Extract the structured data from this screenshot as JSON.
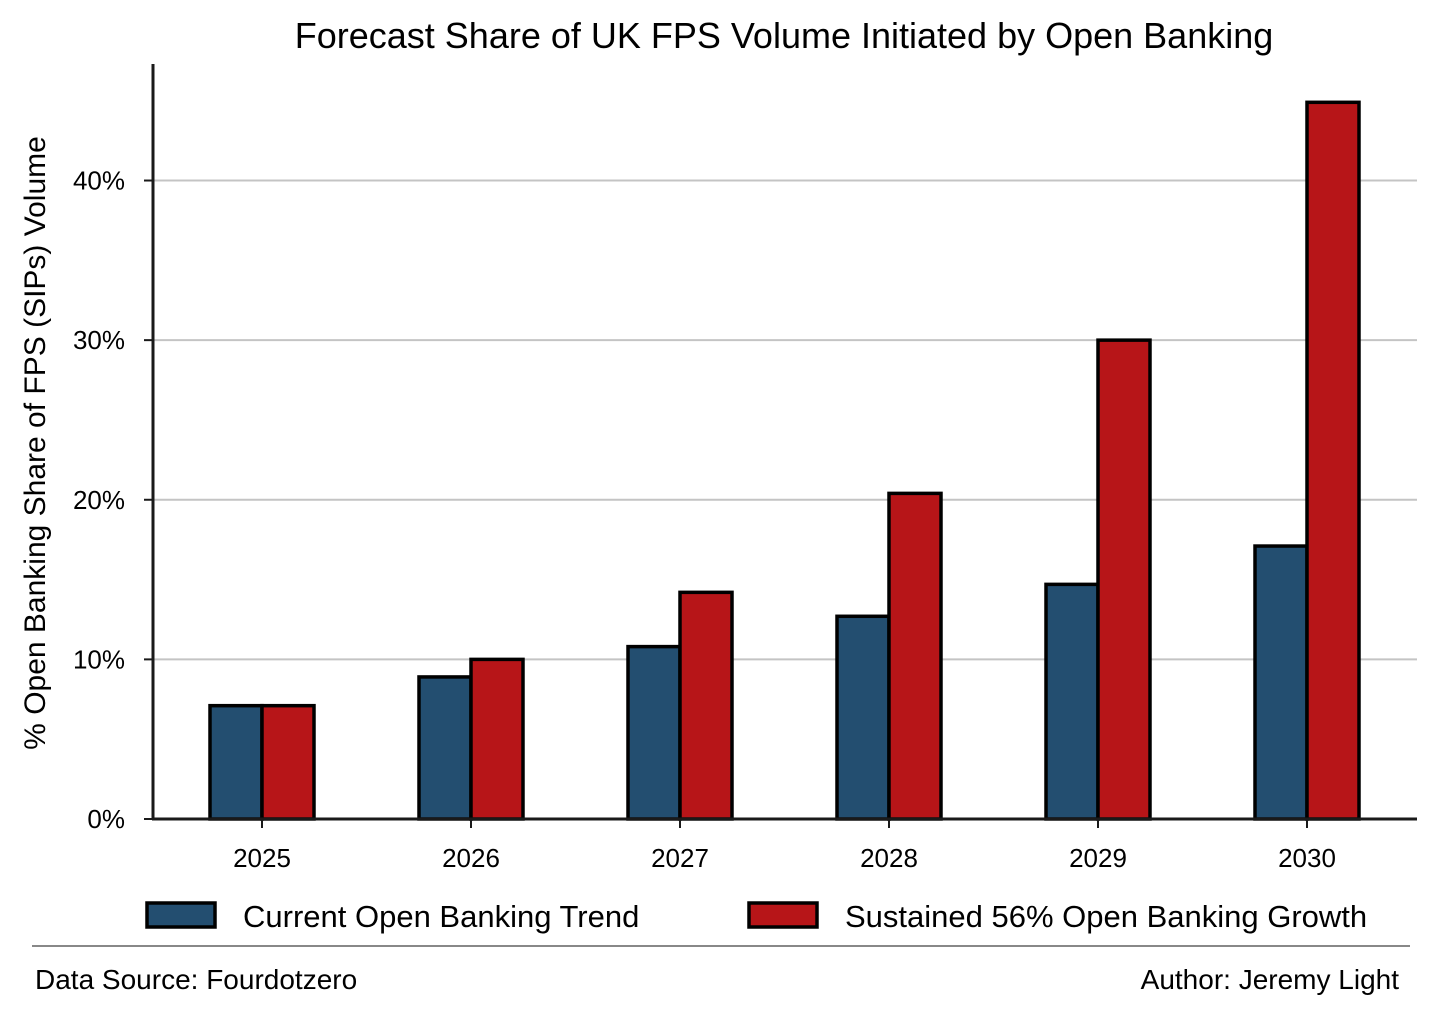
{
  "chart_data": {
    "type": "bar",
    "title": "Forecast Share of UK FPS Volume Initiated by Open Banking",
    "xlabel": "",
    "ylabel": "% Open Banking Share of FPS (SIPs) Volume",
    "categories": [
      "2025",
      "2026",
      "2027",
      "2028",
      "2029",
      "2030"
    ],
    "series": [
      {
        "name": "Current Open Banking Trend",
        "color": "#234e70",
        "values": [
          7.1,
          8.9,
          10.8,
          12.7,
          14.7,
          17.1
        ]
      },
      {
        "name": "Sustained 56% Open Banking Growth",
        "color": "#b71518",
        "values": [
          7.1,
          10.0,
          14.2,
          20.4,
          30.0,
          44.9
        ]
      }
    ],
    "ylim": [
      0,
      47.3
    ],
    "yticks": [
      0,
      10,
      20,
      30,
      40
    ],
    "ytick_labels": [
      "0%",
      "10%",
      "20%",
      "30%",
      "40%"
    ],
    "grid": "horizontal",
    "legend_position": "bottom"
  },
  "footer": {
    "source": "Data Source: Fourdotzero",
    "author": "Author: Jeremy Light"
  }
}
